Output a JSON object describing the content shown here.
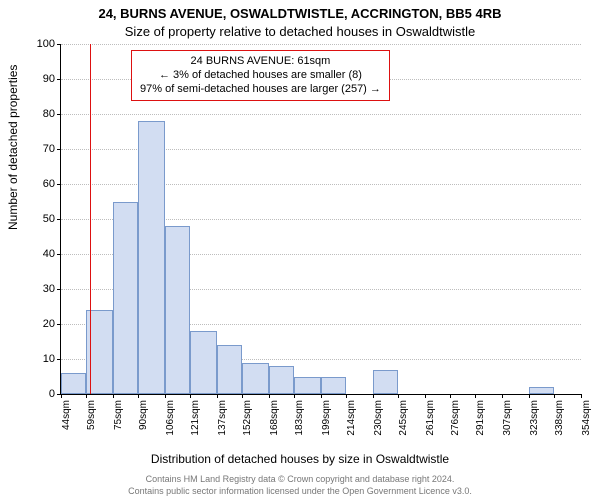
{
  "titles": {
    "line1": "24, BURNS AVENUE, OSWALDTWISTLE, ACCRINGTON, BB5 4RB",
    "line2": "Size of property relative to detached houses in Oswaldtwistle"
  },
  "axes": {
    "y_label": "Number of detached properties",
    "x_label": "Distribution of detached houses by size in Oswaldtwistle"
  },
  "footer": {
    "line1": "Contains HM Land Registry data © Crown copyright and database right 2024.",
    "line2": "Contains public sector information licensed under the Open Government Licence v3.0."
  },
  "chart": {
    "type": "histogram",
    "background_color": "#ffffff",
    "grid_color": "#bdbdbd",
    "bar_fill": "#d2ddf2",
    "bar_stroke": "#7a9acc",
    "ref_line_color": "#d11",
    "ref_line_x": 61,
    "y_min": 0,
    "y_max": 100,
    "y_tick_step": 10,
    "x_ticks": [
      44,
      59,
      75,
      90,
      106,
      121,
      137,
      152,
      168,
      183,
      199,
      214,
      230,
      245,
      261,
      276,
      291,
      307,
      323,
      338,
      354
    ],
    "x_tick_suffix": "sqm",
    "bars": [
      {
        "x0": 44,
        "x1": 59,
        "h": 6
      },
      {
        "x0": 59,
        "x1": 75,
        "h": 24
      },
      {
        "x0": 75,
        "x1": 90,
        "h": 55
      },
      {
        "x0": 90,
        "x1": 106,
        "h": 78
      },
      {
        "x0": 106,
        "x1": 121,
        "h": 48
      },
      {
        "x0": 121,
        "x1": 137,
        "h": 18
      },
      {
        "x0": 137,
        "x1": 152,
        "h": 14
      },
      {
        "x0": 152,
        "x1": 168,
        "h": 9
      },
      {
        "x0": 168,
        "x1": 183,
        "h": 8
      },
      {
        "x0": 183,
        "x1": 199,
        "h": 5
      },
      {
        "x0": 199,
        "x1": 214,
        "h": 5
      },
      {
        "x0": 214,
        "x1": 230,
        "h": 0
      },
      {
        "x0": 230,
        "x1": 245,
        "h": 7
      },
      {
        "x0": 245,
        "x1": 261,
        "h": 0
      },
      {
        "x0": 261,
        "x1": 276,
        "h": 0
      },
      {
        "x0": 276,
        "x1": 291,
        "h": 0
      },
      {
        "x0": 291,
        "x1": 307,
        "h": 0
      },
      {
        "x0": 307,
        "x1": 323,
        "h": 0
      },
      {
        "x0": 323,
        "x1": 338,
        "h": 2
      },
      {
        "x0": 338,
        "x1": 354,
        "h": 0
      }
    ]
  },
  "annotation": {
    "line1": "24 BURNS AVENUE: 61sqm",
    "line2": "← 3% of detached houses are smaller (8)",
    "line3": "97% of semi-detached houses are larger (257) →",
    "border_color": "#d11",
    "background": "#ffffff"
  }
}
